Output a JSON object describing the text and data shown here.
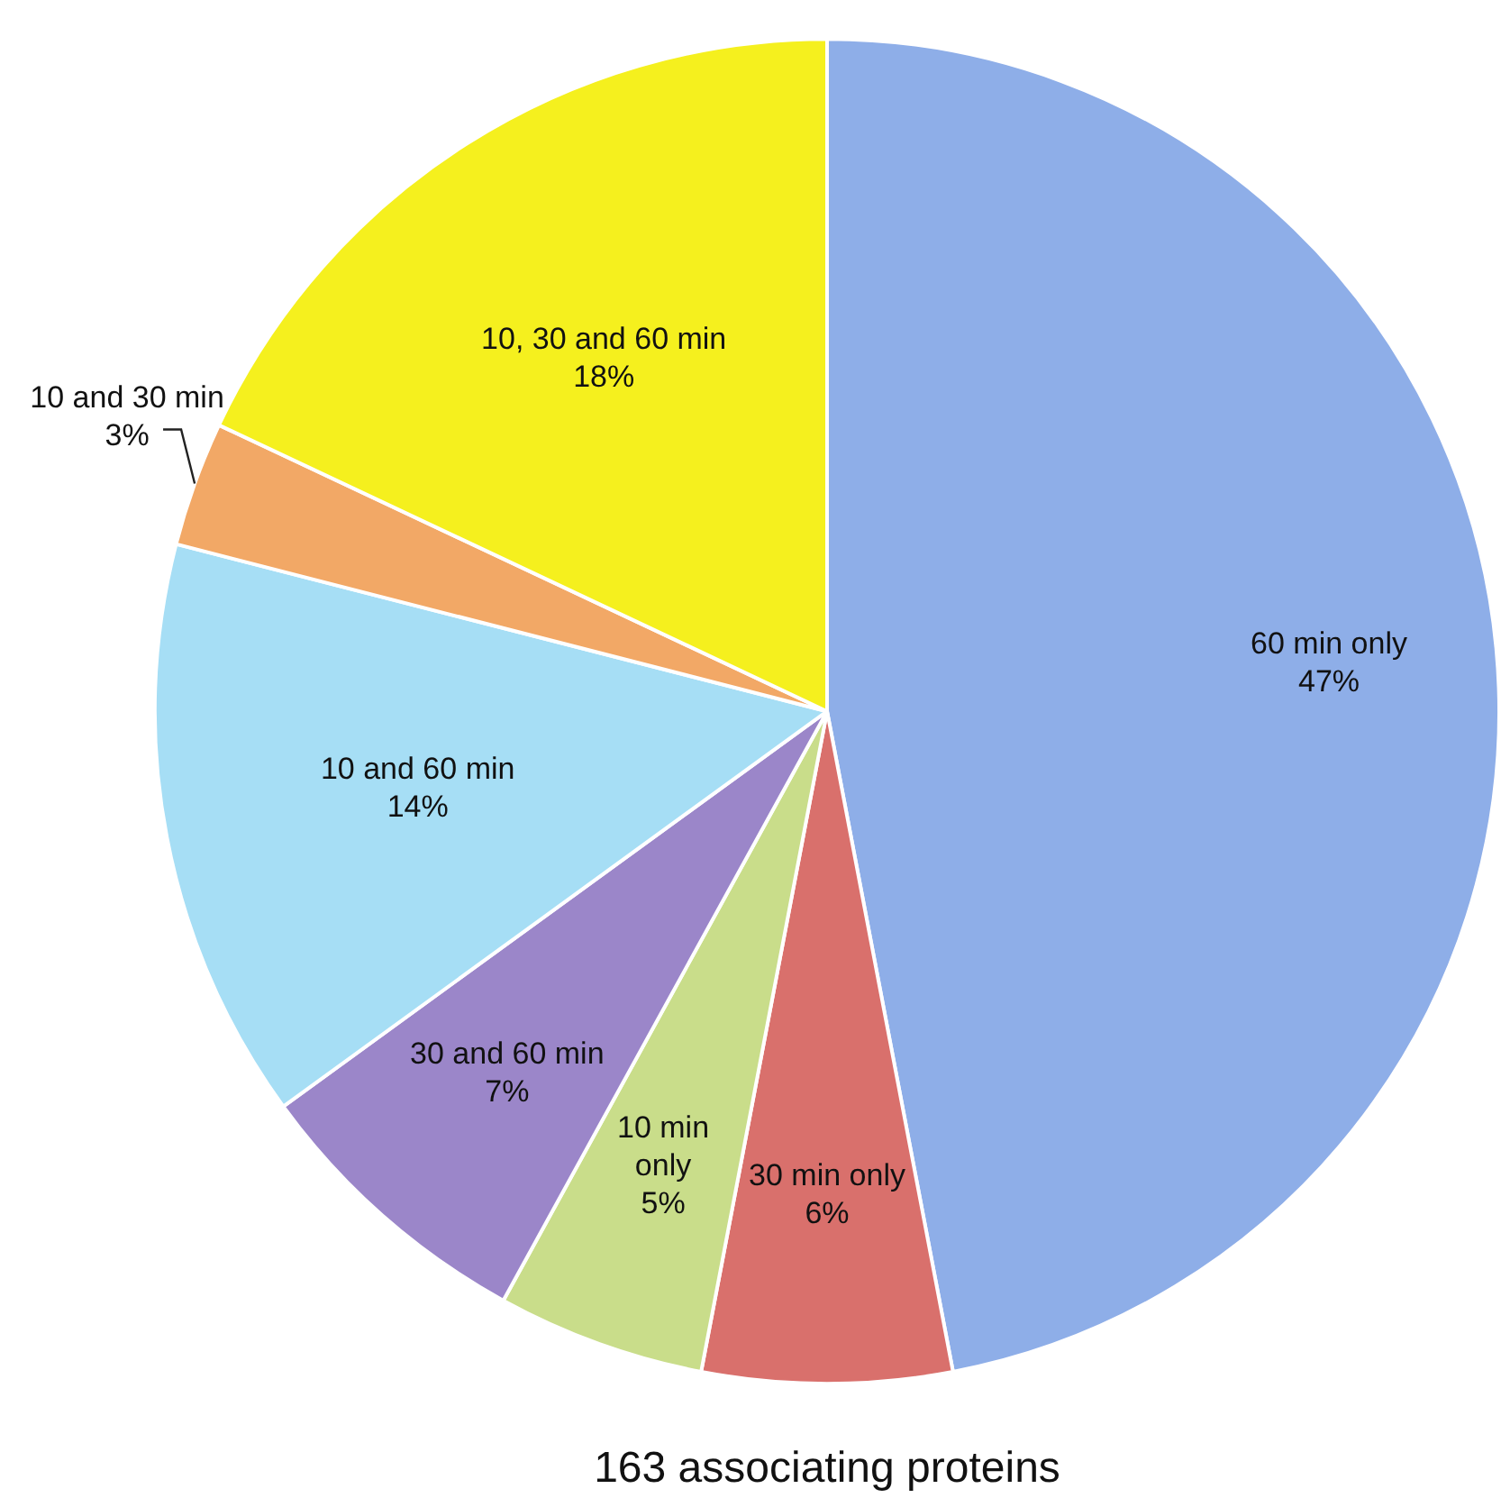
{
  "chart_data": {
    "type": "pie",
    "title": "163 associating proteins",
    "categories": [
      "60 min only",
      "30 min only",
      "10 min only",
      "30 and 60 min",
      "10 and 60 min",
      "10 and 30 min",
      "10, 30 and 60 min"
    ],
    "values": [
      47,
      6,
      5,
      7,
      14,
      3,
      18
    ],
    "value_labels": [
      "47%",
      "6%",
      "5%",
      "7%",
      "14%",
      "3%",
      "18%"
    ],
    "colors": [
      "#8eaee8",
      "#d9706c",
      "#c9dd8a",
      "#9b86c9",
      "#a6def5",
      "#f2a866",
      "#f5f01e"
    ],
    "legend": false
  }
}
